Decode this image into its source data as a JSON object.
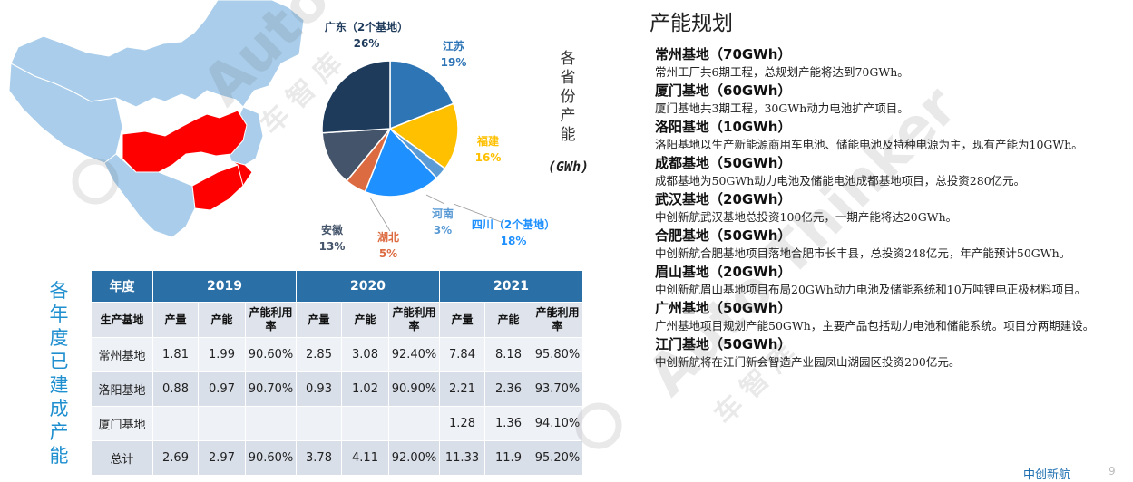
{
  "colors": {
    "map_base": "#a9cdea",
    "map_highlight": "#ff0000",
    "table_header": "#2a6fa6",
    "title_blue": "#1f8fcf"
  },
  "pie": {
    "title": "各省份产能",
    "unit": "(GWh)",
    "slices": [
      {
        "name": "江苏",
        "percent": "19%",
        "value": 19,
        "color": "#2e75b6"
      },
      {
        "name": "福建",
        "percent": "16%",
        "value": 16,
        "color": "#ffc000"
      },
      {
        "name": "河南",
        "percent": "3%",
        "value": 3,
        "color": "#5b9bd5"
      },
      {
        "name": "四川（2个基地）",
        "percent": "18%",
        "value": 18,
        "color": "#1e90ff"
      },
      {
        "name": "湖北",
        "percent": "5%",
        "value": 5,
        "color": "#dd6b41"
      },
      {
        "name": "安徽",
        "percent": "13%",
        "value": 13,
        "color": "#44546a"
      },
      {
        "name": "广东（2个基地）",
        "percent": "26%",
        "value": 26,
        "color": "#1f3b5c"
      }
    ]
  },
  "table": {
    "title": "各年度已建成产能",
    "year_header": "年度",
    "years": [
      "2019",
      "2020",
      "2021"
    ],
    "base_header": "生产基地",
    "sub_headers": [
      "产量",
      "产能",
      "产能利用率"
    ],
    "rows": [
      {
        "base": "常州基地",
        "values": [
          "1.81",
          "1.99",
          "90.60%",
          "2.85",
          "3.08",
          "92.40%",
          "7.84",
          "8.18",
          "95.80%"
        ]
      },
      {
        "base": "洛阳基地",
        "values": [
          "0.88",
          "0.97",
          "90.70%",
          "0.93",
          "1.02",
          "90.90%",
          "2.21",
          "2.36",
          "93.70%"
        ]
      },
      {
        "base": "厦门基地",
        "values": [
          "",
          "",
          "",
          "",
          "",
          "",
          "1.28",
          "1.36",
          "94.10%"
        ]
      },
      {
        "base": "总计",
        "values": [
          "2.69",
          "2.97",
          "90.60%",
          "3.78",
          "4.11",
          "92.00%",
          "11.33",
          "11.9",
          "95.20%"
        ]
      }
    ]
  },
  "plan": {
    "title": "产能规划",
    "bases": [
      {
        "name": "常州基地（70GWh）",
        "desc": "常州工厂共6期工程，总规划产能将达到70GWh。"
      },
      {
        "name": "厦门基地（60GWh）",
        "desc": "厦门基地共3期工程，30GWh动力电池扩产项目。"
      },
      {
        "name": "洛阳基地（10GWh）",
        "desc": "洛阳基地以生产新能源商用车电池、储能电池及特种电源为主，现有产能为10GWh。"
      },
      {
        "name": "成都基地（50GWh）",
        "desc": "成都基地为50GWh动力电池及储能电池成都基地项目，总投资280亿元。"
      },
      {
        "name": "武汉基地（20GWh）",
        "desc": "中创新航武汉基地总投资100亿元，一期产能将达20GWh。"
      },
      {
        "name": "合肥基地（50GWh）",
        "desc": "中创新航合肥基地项目落地合肥市长丰县，总投资248亿元，年产能预计50GWh。"
      },
      {
        "name": "眉山基地（20GWh）",
        "desc": "中创新航眉山基地项目布局20GWh动力电池及储能系统和10万吨锂电正极材料项目。"
      },
      {
        "name": "广州基地（50GWh）",
        "desc": "广州基地项目规划产能50GWh，主要产品包括动力电池和储能系统。项目分两期建设。"
      },
      {
        "name": "江门基地（50GWh）",
        "desc": "中创新航将在江门新会智造产业园凤山湖园区投资200亿元。"
      }
    ]
  },
  "footer": {
    "text": "中创新航",
    "page": "9"
  },
  "watermark": {
    "text": "Auto Thinker",
    "sub": "车 智 库"
  }
}
